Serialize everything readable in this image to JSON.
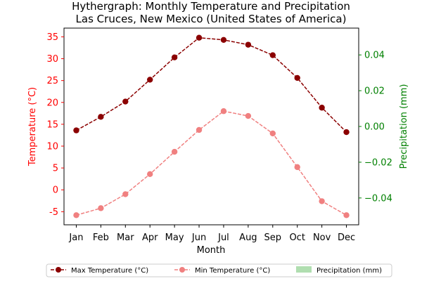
{
  "chart_data": {
    "type": "line",
    "title_line1": "Hythergraph: Monthly Temperature and Precipitation",
    "title_line2": "Las Cruces, New Mexico (United States of America)",
    "xlabel": "Month",
    "ylabel_left": "Temperature (°C)",
    "ylabel_right": "Precipitation (mm)",
    "categories": [
      "Jan",
      "Feb",
      "Mar",
      "Apr",
      "May",
      "Jun",
      "Jul",
      "Aug",
      "Sep",
      "Oct",
      "Nov",
      "Dec"
    ],
    "y_left_lim": [
      -8,
      37
    ],
    "y_left_ticks": [
      "-5",
      "0",
      "5",
      "10",
      "15",
      "20",
      "25",
      "30",
      "35"
    ],
    "y_right_lim": [
      -0.055,
      0.055
    ],
    "y_right_ticks": [
      "−0.04",
      "−0.02",
      "0.00",
      "0.02",
      "0.04"
    ],
    "series": [
      {
        "name": "Max Temperature (°C)",
        "color": "#8b0000",
        "values": [
          13.6,
          16.7,
          20.2,
          25.2,
          30.3,
          34.8,
          34.3,
          33.2,
          30.8,
          25.6,
          18.8,
          13.2
        ]
      },
      {
        "name": "Min Temperature (°C)",
        "color": "#f08080",
        "values": [
          -5.8,
          -4.2,
          -1.0,
          3.6,
          8.7,
          13.7,
          18.0,
          16.9,
          12.9,
          5.2,
          -2.6,
          -5.8
        ]
      }
    ],
    "precipitation": {
      "name": "Precipitation (mm)",
      "color": "#b0deb0",
      "values": [
        0,
        0,
        0,
        0,
        0,
        0,
        0,
        0,
        0,
        0,
        0,
        0
      ]
    },
    "left_axis_color": "#ff0000",
    "right_axis_color": "#008000",
    "legend_position": "bottom",
    "grid": false
  }
}
